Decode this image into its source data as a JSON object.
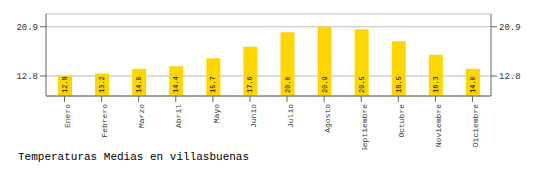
{
  "chart_data": {
    "type": "bar",
    "title": "Temperaturas Medias en villasbuenas",
    "categories": [
      "Enero",
      "Febrero",
      "Marzo",
      "Abril",
      "Mayo",
      "Junio",
      "Julio",
      "Agosto",
      "Septiembre",
      "Octubre",
      "Noviembre",
      "Diciembre"
    ],
    "values": [
      12.8,
      13.2,
      14.0,
      14.4,
      15.7,
      17.6,
      20.0,
      20.9,
      20.5,
      18.5,
      16.3,
      14.0
    ],
    "value_labels": [
      "12.8",
      "13.2",
      "14.0",
      "14.4",
      "15.7",
      "17.6",
      "20.0",
      "20.9",
      "20.5",
      "18.5",
      "16.3",
      "14.0"
    ],
    "data_labels": true,
    "color": "#FFD700",
    "ylim": [
      9.5,
      23.0
    ],
    "yticks": [
      12.8,
      20.9
    ],
    "y2lim": [
      9.5,
      23.0
    ],
    "y2ticks": [
      12.8,
      20.9
    ],
    "grid": true
  }
}
